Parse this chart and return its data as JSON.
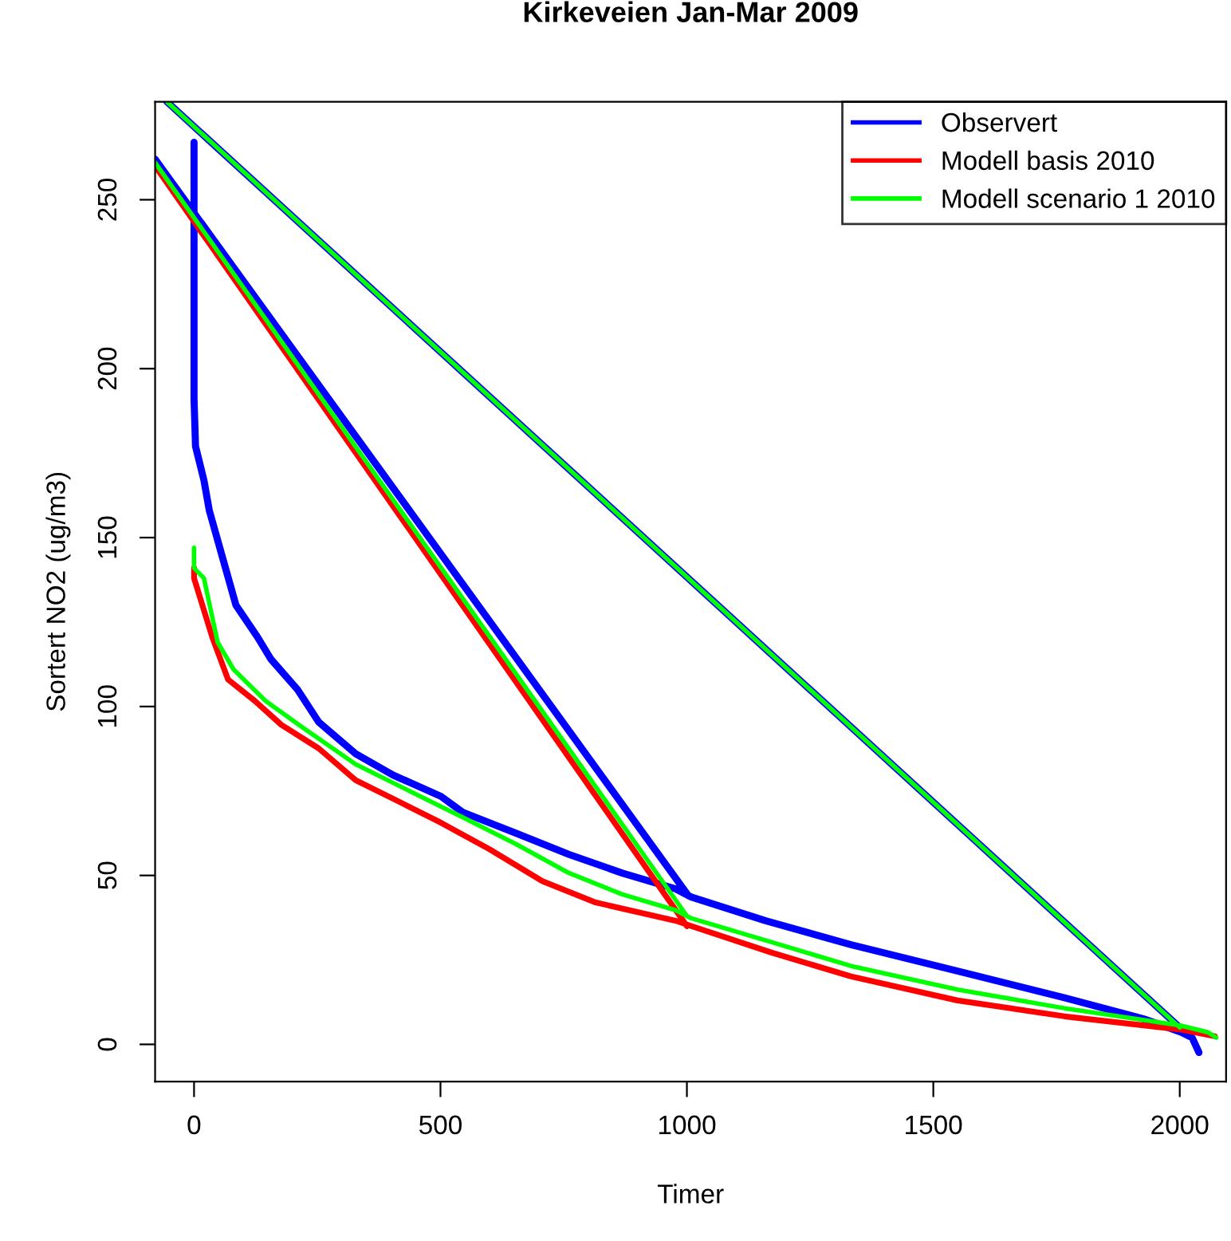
{
  "chart_data": {
    "type": "line",
    "title": "Kirkeveien Jan-Mar 2009",
    "xlabel": "Timer",
    "ylabel": "Sortert NO2 (ug/m3)",
    "xlim": [
      -79,
      2094
    ],
    "ylim": [
      -11,
      279
    ],
    "xticks": [
      0,
      500,
      1000,
      1500,
      2000
    ],
    "yticks": [
      0,
      50,
      100,
      150,
      200,
      250
    ],
    "grid": false,
    "legend": "top right",
    "marker": "none",
    "line_style": "solid",
    "series": [
      {
        "name": "Observert",
        "color": "#0000ff",
        "x": [
          0,
          0,
          3,
          20,
          31,
          58,
          85,
          129,
          156,
          210,
          253,
          328,
          404,
          501,
          545,
          653,
          761,
          869,
          977,
          1009,
          1160,
          1333,
          1549,
          1766,
          1928,
          2003,
          2025,
          2039,
          null,
          -79,
          1003,
          null,
          -55,
          2000
        ],
        "values": [
          267,
          191,
          177,
          167,
          158,
          144,
          130,
          120.5,
          114,
          105,
          95.4,
          86,
          79.7,
          73.4,
          68.7,
          62.5,
          56.2,
          50.7,
          46,
          43.6,
          36.6,
          29.5,
          21.7,
          13.8,
          7.5,
          3.6,
          2,
          -2.4,
          null,
          262,
          44,
          null,
          279,
          5
        ]
      },
      {
        "name": "Modell basis 2010",
        "color": "#ff0000",
        "x": [
          0,
          0,
          37,
          69,
          123,
          177,
          253,
          328,
          415,
          501,
          599,
          707,
          815,
          977,
          1009,
          1171,
          1333,
          1549,
          1766,
          2001,
          2071,
          null,
          -79,
          1000
        ],
        "values": [
          141,
          138,
          120.5,
          108,
          101.7,
          94.6,
          87.6,
          78.2,
          71.9,
          65.6,
          57.8,
          48.3,
          42,
          36.6,
          35,
          27.2,
          20.1,
          13,
          8.3,
          4.4,
          2.4,
          null,
          260,
          35
        ]
      },
      {
        "name": "Modell scenario 1 2010",
        "color": "#00ff00",
        "x": [
          0,
          0,
          20,
          48,
          80,
          145,
          220,
          328,
          437,
          545,
          653,
          761,
          869,
          977,
          1009,
          1171,
          1333,
          1549,
          1766,
          2001,
          2057,
          2074,
          null,
          -79,
          1000,
          null,
          -55,
          2000
        ],
        "values": [
          147,
          141,
          138,
          119,
          111,
          101.7,
          93.8,
          82.9,
          75,
          67.2,
          59.3,
          50.7,
          44.4,
          39.7,
          37.3,
          30.3,
          23.2,
          16.2,
          10.7,
          5.6,
          3.6,
          2,
          null,
          261,
          38,
          null,
          279,
          5
        ]
      }
    ]
  }
}
